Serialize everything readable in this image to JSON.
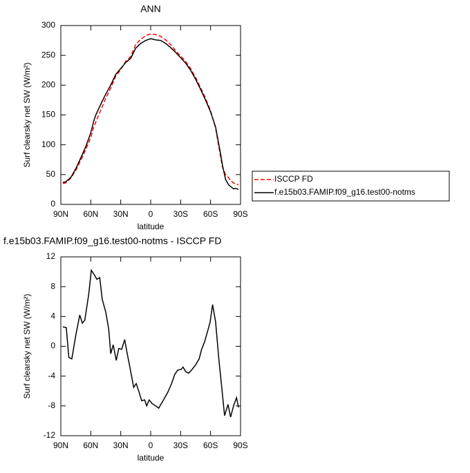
{
  "chart_data": [
    {
      "type": "line",
      "title": "ANN",
      "xlabel": "latitude",
      "ylabel": "Surf clearsky net SW (W/m²)",
      "x": [
        88,
        85,
        80,
        75,
        70,
        65,
        60,
        57,
        55,
        50,
        45,
        40,
        35,
        30,
        25,
        20,
        15,
        10,
        5,
        0,
        -5,
        -10,
        -15,
        -20,
        -25,
        -30,
        -35,
        -40,
        -45,
        -50,
        -55,
        -60,
        -65,
        -70,
        -72,
        -75,
        -78,
        -80,
        -83,
        -85,
        -88
      ],
      "series": [
        {
          "name": "ISCCP FD",
          "color": "#ff0000",
          "dashed": true,
          "values": [
            35,
            36,
            44,
            57,
            74,
            92,
            112,
            130,
            138,
            158,
            178,
            195,
            215,
            226,
            240,
            248,
            268,
            277,
            283,
            286,
            285,
            282,
            276,
            268,
            258,
            249,
            240,
            228,
            213,
            196,
            178,
            157,
            128,
            80,
            62,
            50,
            45,
            40,
            36,
            34,
            33
          ]
        },
        {
          "name": "f.e15b03.FAMIP.f09_g16.test00-notms",
          "color": "#000000",
          "dashed": false,
          "values": [
            37,
            38,
            45,
            60,
            78,
            97,
            120,
            140,
            150,
            168,
            185,
            200,
            218,
            228,
            238,
            245,
            262,
            270,
            275,
            278,
            276,
            275,
            270,
            263,
            255,
            246,
            237,
            225,
            210,
            193,
            175,
            155,
            130,
            85,
            65,
            42,
            33,
            30,
            26,
            27,
            25
          ]
        }
      ],
      "xlim": [
        90,
        -90
      ],
      "xticks": [
        {
          "value": 90,
          "label": "90N"
        },
        {
          "value": 60,
          "label": "60N"
        },
        {
          "value": 30,
          "label": "30N"
        },
        0,
        {
          "value": -30,
          "label": "30S"
        },
        {
          "value": -60,
          "label": "60S"
        },
        {
          "value": -90,
          "label": "90S"
        }
      ],
      "ylim": [
        0,
        300
      ],
      "yticks": [
        0,
        50,
        100,
        150,
        200,
        250,
        300
      ],
      "legend": "outside-right"
    },
    {
      "type": "line",
      "title": "f.e15b03.FAMIP.f09_g16.test00-notms - ISCCP FD",
      "xlabel": "latitude",
      "ylabel": "Surf clearsky net SW (W/m²)",
      "x": [
        88,
        84.5,
        82,
        79,
        75,
        71,
        68.5,
        66,
        62,
        59.5,
        56,
        54,
        51,
        48.5,
        45,
        42,
        40,
        37.5,
        34.5,
        32,
        29,
        26,
        23.5,
        21,
        17,
        14.5,
        12,
        9,
        6,
        4,
        1.5,
        -1.5,
        -5,
        -8,
        -12,
        -17,
        -21,
        -24,
        -27,
        -30.5,
        -32.5,
        -35,
        -38,
        -41.5,
        -45,
        -48.5,
        -51,
        -54,
        -57,
        -59.5,
        -62,
        -65,
        -68.5,
        -71,
        -74,
        -77.5,
        -80,
        -83,
        -86,
        -88
      ],
      "series": [
        {
          "color": "#000000",
          "values": [
            2.6,
            2.5,
            -1.5,
            -1.7,
            1.5,
            4.2,
            3.1,
            3.5,
            7,
            10.2,
            9.5,
            9,
            9.2,
            6.3,
            4.6,
            2.3,
            -1,
            0.2,
            -1.9,
            -0.3,
            -0.4,
            0.9,
            -1,
            -2.7,
            -5.5,
            -5,
            -6,
            -7.3,
            -7.2,
            -8,
            -7.2,
            -7.7,
            -8,
            -8.3,
            -7.4,
            -6.2,
            -5,
            -3.8,
            -3.2,
            -3.1,
            -2.8,
            -3.4,
            -3.6,
            -3.1,
            -2.5,
            -1.7,
            -0.4,
            0.6,
            2,
            3.2,
            5.6,
            3.3,
            -2,
            -5.3,
            -9.3,
            -7.8,
            -9.5,
            -8,
            -6.9,
            -8.2
          ]
        }
      ],
      "xlim": [
        90,
        -90
      ],
      "xticks": [
        {
          "value": 90,
          "label": "90N"
        },
        {
          "value": 60,
          "label": "60N"
        },
        {
          "value": 30,
          "label": "30N"
        },
        0,
        {
          "value": -30,
          "label": "30S"
        },
        {
          "value": -60,
          "label": "60S"
        },
        {
          "value": -90,
          "label": "90S"
        }
      ],
      "ylim": [
        -12,
        12
      ],
      "yticks": [
        -12,
        -8,
        -4,
        0,
        4,
        8,
        12
      ]
    }
  ]
}
